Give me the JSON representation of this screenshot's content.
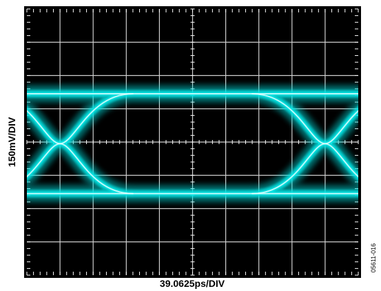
{
  "chart_data": {
    "type": "eye-diagram",
    "title": "",
    "xlabel": "39.0625ps/DIV",
    "ylabel": "150mV/DIV",
    "x_divisions": 10,
    "y_divisions": 8,
    "grid": true,
    "trace_color": "#00e6e6",
    "background_color": "#000000",
    "eye": {
      "crossing_1_div": 1.0,
      "crossing_2_div": 9.0,
      "high_level_div": 2.55,
      "low_level_div": 5.55,
      "crossing_level_div": 4.05
    }
  },
  "figure_id": "05611-016"
}
